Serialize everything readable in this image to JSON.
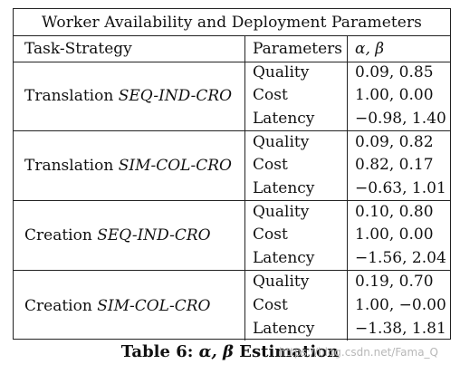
{
  "table": {
    "title": "Worker Availability and Deployment Parameters",
    "headers": {
      "task_strategy": "Task-Strategy",
      "parameters": "Parameters",
      "alpha_beta": "α, β"
    },
    "groups": [
      {
        "task": "Translation",
        "strategy": "SEQ-IND-CRO",
        "rows": [
          {
            "param": "Quality",
            "value": "0.09, 0.85"
          },
          {
            "param": "Cost",
            "value": "1.00, 0.00"
          },
          {
            "param": "Latency",
            "value": "−0.98, 1.40"
          }
        ]
      },
      {
        "task": "Translation",
        "strategy": "SIM-COL-CRO",
        "rows": [
          {
            "param": "Quality",
            "value": "0.09, 0.82"
          },
          {
            "param": "Cost",
            "value": "0.82, 0.17"
          },
          {
            "param": "Latency",
            "value": "−0.63, 1.01"
          }
        ]
      },
      {
        "task": "Creation",
        "strategy": "SEQ-IND-CRO",
        "rows": [
          {
            "param": "Quality",
            "value": "0.10, 0.80"
          },
          {
            "param": "Cost",
            "value": "1.00, 0.00"
          },
          {
            "param": "Latency",
            "value": "−1.56, 2.04"
          }
        ]
      },
      {
        "task": "Creation",
        "strategy": "SIM-COL-CRO",
        "rows": [
          {
            "param": "Quality",
            "value": "0.19, 0.70"
          },
          {
            "param": "Cost",
            "value": "1.00, −0.00"
          },
          {
            "param": "Latency",
            "value": "−1.38, 1.81"
          }
        ]
      }
    ]
  },
  "caption": {
    "label": "Table 6:",
    "greek": "α, β",
    "text": "Estimation"
  },
  "watermark": "https://blog.csdn.net/Fama_Q"
}
